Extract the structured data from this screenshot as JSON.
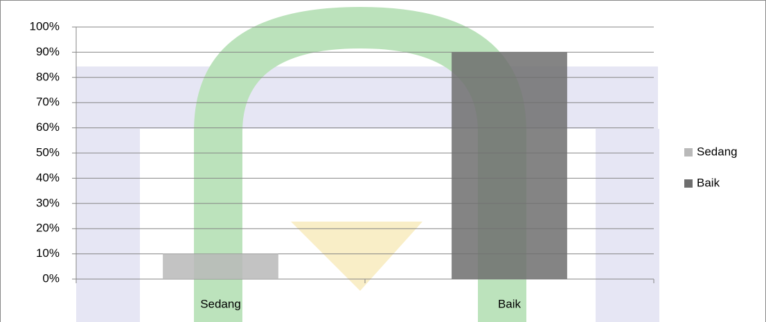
{
  "chart_data": {
    "type": "stacked_bar",
    "categories": [
      "Sedang",
      "Baik"
    ],
    "series": [
      {
        "name": "Sedang",
        "color": "#b9b9b9",
        "values": [
          10,
          null
        ]
      },
      {
        "name": "Baik",
        "color": "#6e6e6e",
        "values": [
          null,
          90
        ]
      }
    ],
    "ylim": [
      0,
      100
    ],
    "yticks": [
      {
        "value": 0,
        "label": "0%"
      },
      {
        "value": 10,
        "label": "10%"
      },
      {
        "value": 20,
        "label": "20%"
      },
      {
        "value": 30,
        "label": "30%"
      },
      {
        "value": 40,
        "label": "40%"
      },
      {
        "value": 50,
        "label": "50%"
      },
      {
        "value": 60,
        "label": "60%"
      },
      {
        "value": 70,
        "label": "70%"
      },
      {
        "value": 80,
        "label": "80%"
      },
      {
        "value": 90,
        "label": "90%"
      },
      {
        "value": 100,
        "label": "100%"
      }
    ],
    "grid": true,
    "legend": "right"
  }
}
